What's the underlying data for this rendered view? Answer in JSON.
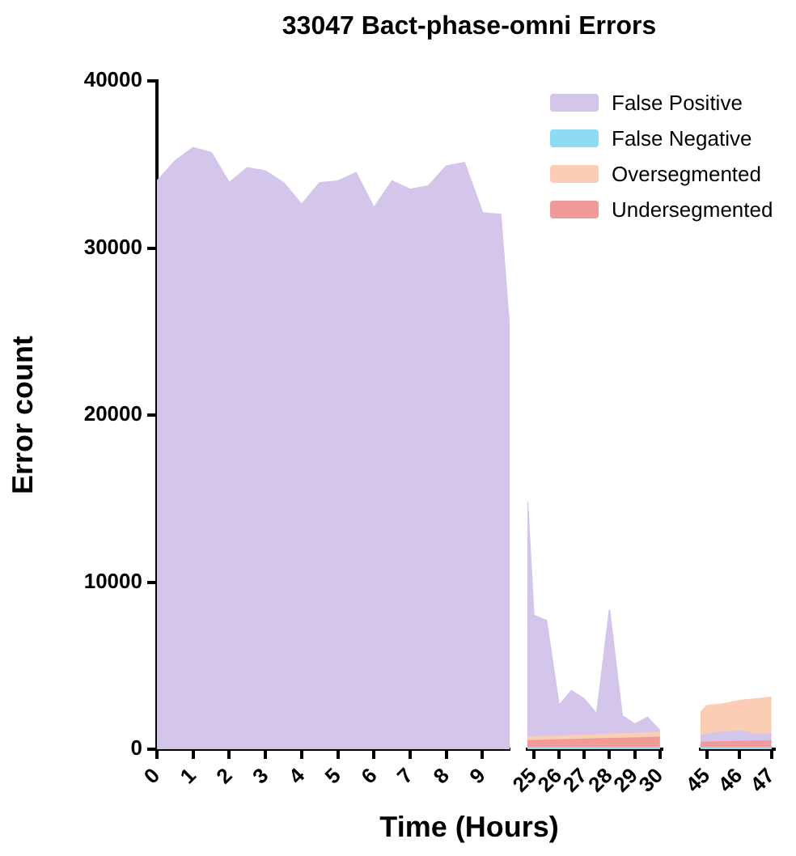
{
  "chart_data": [
    {
      "type": "area",
      "title": "33047 Bact-phase-omni Errors",
      "xlabel": "Time (Hours)",
      "ylabel": "Error count",
      "grid": false,
      "xlim": [
        0,
        9.75
      ],
      "xticks": [
        0,
        1,
        2,
        3,
        4,
        5,
        6,
        7,
        8,
        9
      ],
      "ylim": [
        0,
        40000
      ],
      "yticks": [
        0,
        10000,
        20000,
        30000,
        40000
      ],
      "series": [
        {
          "color": "#d3c6ea",
          "x": [
            0,
            0.5,
            1,
            1.5,
            2,
            2.5,
            3,
            3.5,
            4,
            4.5,
            5,
            5.5,
            6,
            6.5,
            7,
            7.5,
            8,
            8.5,
            9,
            9.5,
            9.75
          ],
          "values": [
            34000,
            35200,
            36000,
            35700,
            33900,
            34800,
            34600,
            33900,
            32600,
            33900,
            34000,
            34500,
            32400,
            34000,
            33500,
            33700,
            34900,
            35100,
            32100,
            32000,
            25000
          ]
        }
      ]
    },
    {
      "type": "area",
      "tick_labels": "x",
      "grid": false,
      "legend": "top right",
      "xlim": [
        24.75,
        30.1
      ],
      "xticks": [
        25,
        26,
        27,
        28,
        29,
        30
      ],
      "ylim": [
        0,
        40000
      ],
      "series": [
        {
          "name": "False Positive",
          "color": "#d3c6ea",
          "x": [
            24.75,
            25,
            25.5,
            26,
            26.5,
            27,
            27.5,
            28,
            28.5,
            29,
            29.5,
            30
          ],
          "values": [
            14800,
            8000,
            7700,
            2600,
            3500,
            3000,
            2100,
            8300,
            2000,
            1500,
            1900,
            1100
          ]
        },
        {
          "name": "False Negative",
          "color": "#8fdcf2",
          "x": [
            24.75,
            30
          ],
          "values": [
            100,
            100
          ]
        },
        {
          "name": "Oversegmented",
          "color": "#fbcdb5",
          "x": [
            24.75,
            30
          ],
          "values": [
            700,
            1000
          ]
        },
        {
          "name": "Undersegmented",
          "color": "#f09a9a",
          "x": [
            24.75,
            30
          ],
          "values": [
            500,
            700
          ]
        }
      ]
    },
    {
      "type": "area",
      "tick_labels": "x",
      "grid": false,
      "xlim": [
        44.8,
        47.1
      ],
      "xticks": [
        45,
        46,
        47
      ],
      "ylim": [
        0,
        40000
      ],
      "series": [
        {
          "color": "#d3c6ea",
          "x": [
            44.8,
            45,
            45.5,
            46,
            46.5,
            47
          ],
          "values": [
            800,
            900,
            1000,
            1100,
            900,
            900
          ]
        },
        {
          "color": "#8fdcf2",
          "x": [
            44.8,
            47
          ],
          "values": [
            100,
            100
          ]
        },
        {
          "color": "#fbcdb5",
          "x": [
            44.8,
            45,
            45.5,
            46,
            46.5,
            47
          ],
          "values": [
            2200,
            2600,
            2700,
            2900,
            3000,
            3100
          ]
        },
        {
          "color": "#f09a9a",
          "x": [
            44.8,
            47
          ],
          "values": [
            400,
            500
          ]
        }
      ]
    }
  ]
}
